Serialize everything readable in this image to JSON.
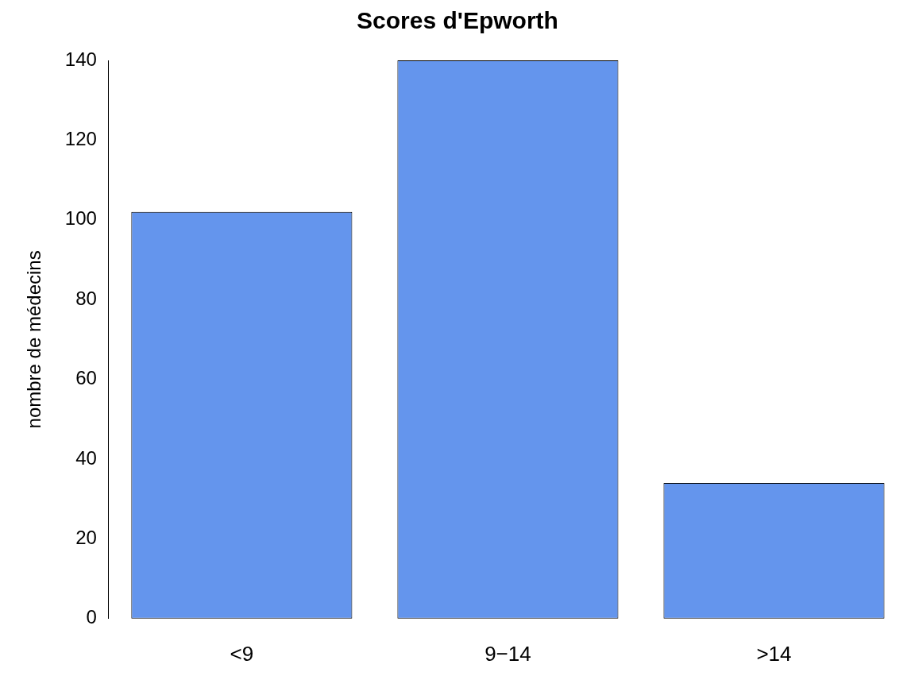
{
  "chart_data": {
    "type": "bar",
    "title": "Scores d'Epworth",
    "ylabel": "nombre de médecins",
    "categories": [
      "<9",
      "9−14",
      ">14"
    ],
    "values": [
      102,
      140,
      34
    ],
    "color": "#6495ed",
    "ylim": [
      0,
      140
    ],
    "yticks": [
      0,
      20,
      40,
      60,
      80,
      100,
      120,
      140
    ],
    "grid": false,
    "legend": false
  }
}
